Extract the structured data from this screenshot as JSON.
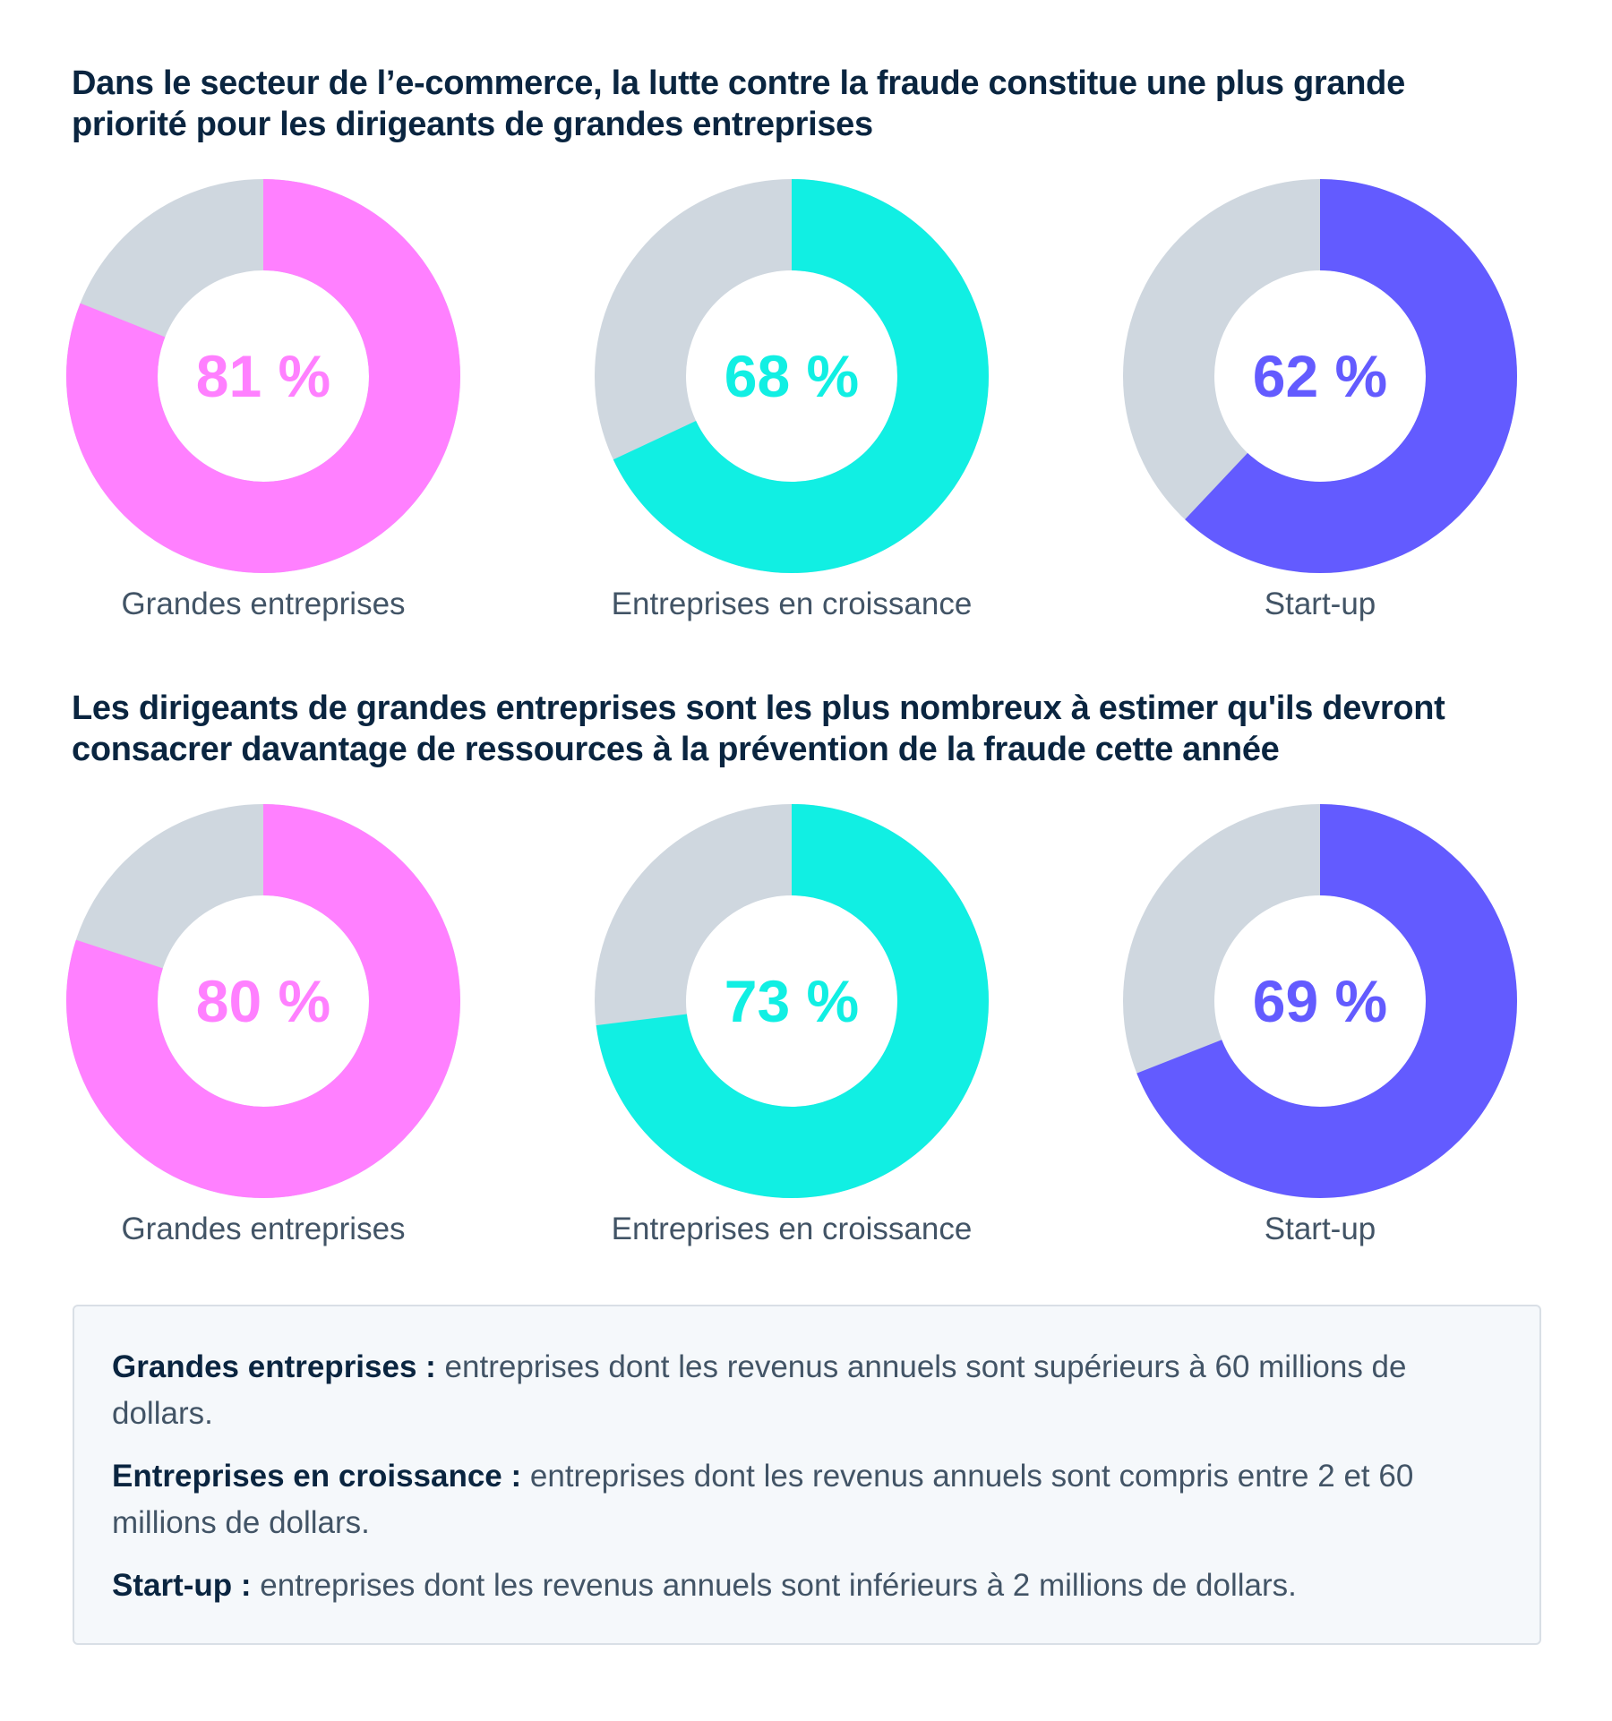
{
  "colors": {
    "grandes": "#ff80ff",
    "croissance": "#11efe3",
    "startup": "#635bff",
    "remainder": "#cfd7df",
    "title": "#0a2540",
    "body": "#425466"
  },
  "sections": [
    {
      "title": "Dans le secteur de l’e-commerce, la lutte contre la fraude constitue une plus grande priorité pour les dirigeants de grandes entreprises"
    },
    {
      "title": "Les dirigeants de grandes entreprises sont les plus nombreux à estimer qu'ils devront consacrer davantage de ressources à la prévention de la fraude cette année"
    }
  ],
  "chart_data": [
    {
      "type": "pie",
      "variant": "donut",
      "title": "Dans le secteur de l’e-commerce, la lutte contre la fraude constitue une plus grande priorité pour les dirigeants de grandes entreprises",
      "categories": [
        "Grandes entreprises",
        "Entreprises en croissance",
        "Start-up"
      ],
      "values": [
        81,
        68,
        62
      ],
      "value_labels": [
        "81 %",
        "68 %",
        "62 %"
      ],
      "unit": "%"
    },
    {
      "type": "pie",
      "variant": "donut",
      "title": "Les dirigeants de grandes entreprises sont les plus nombreux à estimer qu'ils devront consacrer davantage de ressources à la prévention de la fraude cette année",
      "categories": [
        "Grandes entreprises",
        "Entreprises en croissance",
        "Start-up"
      ],
      "values": [
        80,
        73,
        69
      ],
      "value_labels": [
        "80 %",
        "73 %",
        "69 %"
      ],
      "unit": "%"
    }
  ],
  "legend": [
    {
      "term": "Grandes entreprises :",
      "text": "entreprises dont les revenus annuels sont supérieurs à 60 millions de dollars."
    },
    {
      "term": "Entreprises en croissance :",
      "text": "entreprises dont les revenus annuels sont compris entre 2 et 60 millions de dollars."
    },
    {
      "term": "Start-up :",
      "text": "entreprises dont les revenus annuels sont inférieurs à 2 millions de dollars."
    }
  ]
}
